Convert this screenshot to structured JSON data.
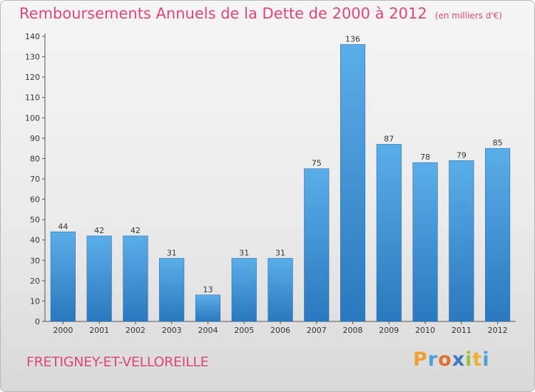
{
  "chart_title": "Remboursements Annuels de la Dette de 2000 à 2012",
  "chart_unit": "(en milliers d'€)",
  "commune": "FRETIGNEY-ET-VELLOREILLE",
  "brand": "Proxiti",
  "colors": {
    "title": "#e0457b",
    "bar_light": "#5aaee8",
    "bar_dark": "#2a78be",
    "axis_text": "#333333",
    "gridline": "#cfcfcf"
  },
  "chart_data": {
    "type": "bar",
    "categories": [
      "2000",
      "2001",
      "2002",
      "2003",
      "2004",
      "2005",
      "2006",
      "2007",
      "2008",
      "2009",
      "2010",
      "2011",
      "2012"
    ],
    "values": [
      44,
      42,
      42,
      31,
      13,
      31,
      31,
      75,
      136,
      87,
      78,
      79,
      85
    ],
    "ylim": [
      0,
      140
    ],
    "yticks": [
      0,
      10,
      20,
      30,
      40,
      50,
      60,
      70,
      80,
      90,
      100,
      110,
      120,
      130,
      140
    ],
    "data_labels": true,
    "grid": false,
    "legend": "none"
  }
}
